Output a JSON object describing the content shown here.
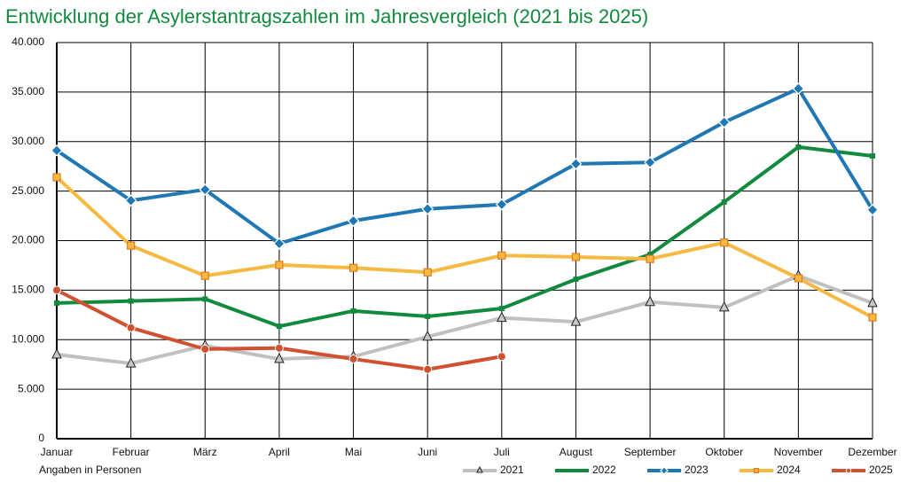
{
  "chart_data": {
    "type": "line",
    "title": "Entwicklung der Asylerstantragszahlen im Jahresvergleich (2021 bis 2025)",
    "note": "Angaben in Personen",
    "categories": [
      "Januar",
      "Februar",
      "März",
      "April",
      "Mai",
      "Juni",
      "Juli",
      "August",
      "September",
      "Oktober",
      "November",
      "Dezember"
    ],
    "ylim": [
      0,
      40000
    ],
    "yticks": [
      0,
      {
        "value": 5000,
        "label": "5.000"
      },
      {
        "value": 10000,
        "label": "10.000"
      },
      {
        "value": 15000,
        "label": "15.000"
      },
      {
        "value": 20000,
        "label": "20.000"
      },
      {
        "value": 25000,
        "label": "25.000"
      },
      {
        "value": 30000,
        "label": "30.000"
      },
      {
        "value": 35000,
        "label": "35.000"
      },
      {
        "value": 40000,
        "label": "40.000"
      }
    ],
    "grid": true,
    "legend": "bottom-right",
    "series": [
      {
        "name": "2021",
        "color": "#c0c0c0",
        "marker": "triangle",
        "values": [
          8500,
          7600,
          9400,
          8050,
          8300,
          10300,
          12200,
          11800,
          13800,
          13250,
          16450,
          13700
        ]
      },
      {
        "name": "2022",
        "color": "#118a3e",
        "marker": "square",
        "values": [
          13700,
          13900,
          14100,
          11350,
          12900,
          12350,
          13150,
          16100,
          18600,
          23900,
          29450,
          28550
        ]
      },
      {
        "name": "2023",
        "color": "#1f77b4",
        "marker": "diamond",
        "values": [
          29100,
          24050,
          25150,
          19700,
          22000,
          23200,
          23650,
          27750,
          27900,
          31950,
          35350,
          23100
        ]
      },
      {
        "name": "2024",
        "color": "#f6b942",
        "marker": "box",
        "values": [
          26400,
          19500,
          16450,
          17550,
          17250,
          16800,
          18500,
          18350,
          18150,
          19800,
          16200,
          12250
        ]
      },
      {
        "name": "2025",
        "color": "#d0502f",
        "marker": "circle",
        "values": [
          15000,
          11200,
          9050,
          9150,
          8050,
          7000,
          8300,
          null,
          null,
          null,
          null,
          null
        ]
      }
    ]
  }
}
